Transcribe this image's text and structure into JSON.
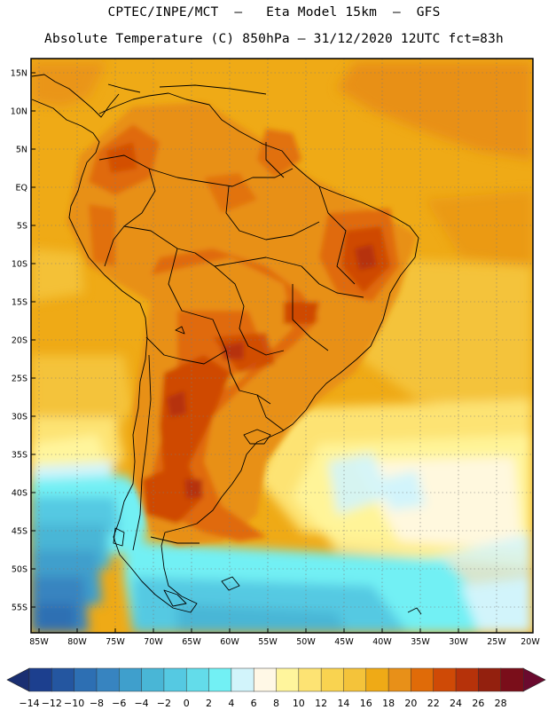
{
  "header": {
    "line1": "CPTEC/INPE/MCT  –   Eta Model 15km  –  GFS",
    "line2": "Absolute Temperature (C) 850hPa – 31/12/2020 12UTC fct=83h"
  },
  "map": {
    "lat_labels": [
      "15N",
      "10N",
      "5N",
      "EQ",
      "5S",
      "10S",
      "15S",
      "20S",
      "25S",
      "30S",
      "35S",
      "40S",
      "45S",
      "50S",
      "55S"
    ],
    "lon_labels": [
      "85W",
      "80W",
      "75W",
      "70W",
      "65W",
      "60W",
      "55W",
      "50W",
      "45W",
      "40W",
      "35W",
      "30W",
      "25W",
      "20W"
    ]
  },
  "colorbar": {
    "labels": [
      "-14",
      "-12",
      "-10",
      "-8",
      "-6",
      "-4",
      "-2",
      "0",
      "2",
      "4",
      "6",
      "8",
      "10",
      "12",
      "14",
      "16",
      "18",
      "20",
      "22",
      "24",
      "26",
      "28"
    ],
    "colors": [
      "#1c3f8e",
      "#2456a0",
      "#2d6fb3",
      "#3784c0",
      "#3f9fcc",
      "#49b6d6",
      "#55c9e2",
      "#63dcea",
      "#72f0f4",
      "#d2f4fb",
      "#fff8e6",
      "#fff59c",
      "#fde373",
      "#f9d350",
      "#f4c33a",
      "#efaa16",
      "#e89018",
      "#e06b08",
      "#cf4a06",
      "#b6320a",
      "#93200e",
      "#7a0e1a"
    ],
    "left_arrow_color": "#1a2f72",
    "right_arrow_color": "#6a0a2e"
  }
}
